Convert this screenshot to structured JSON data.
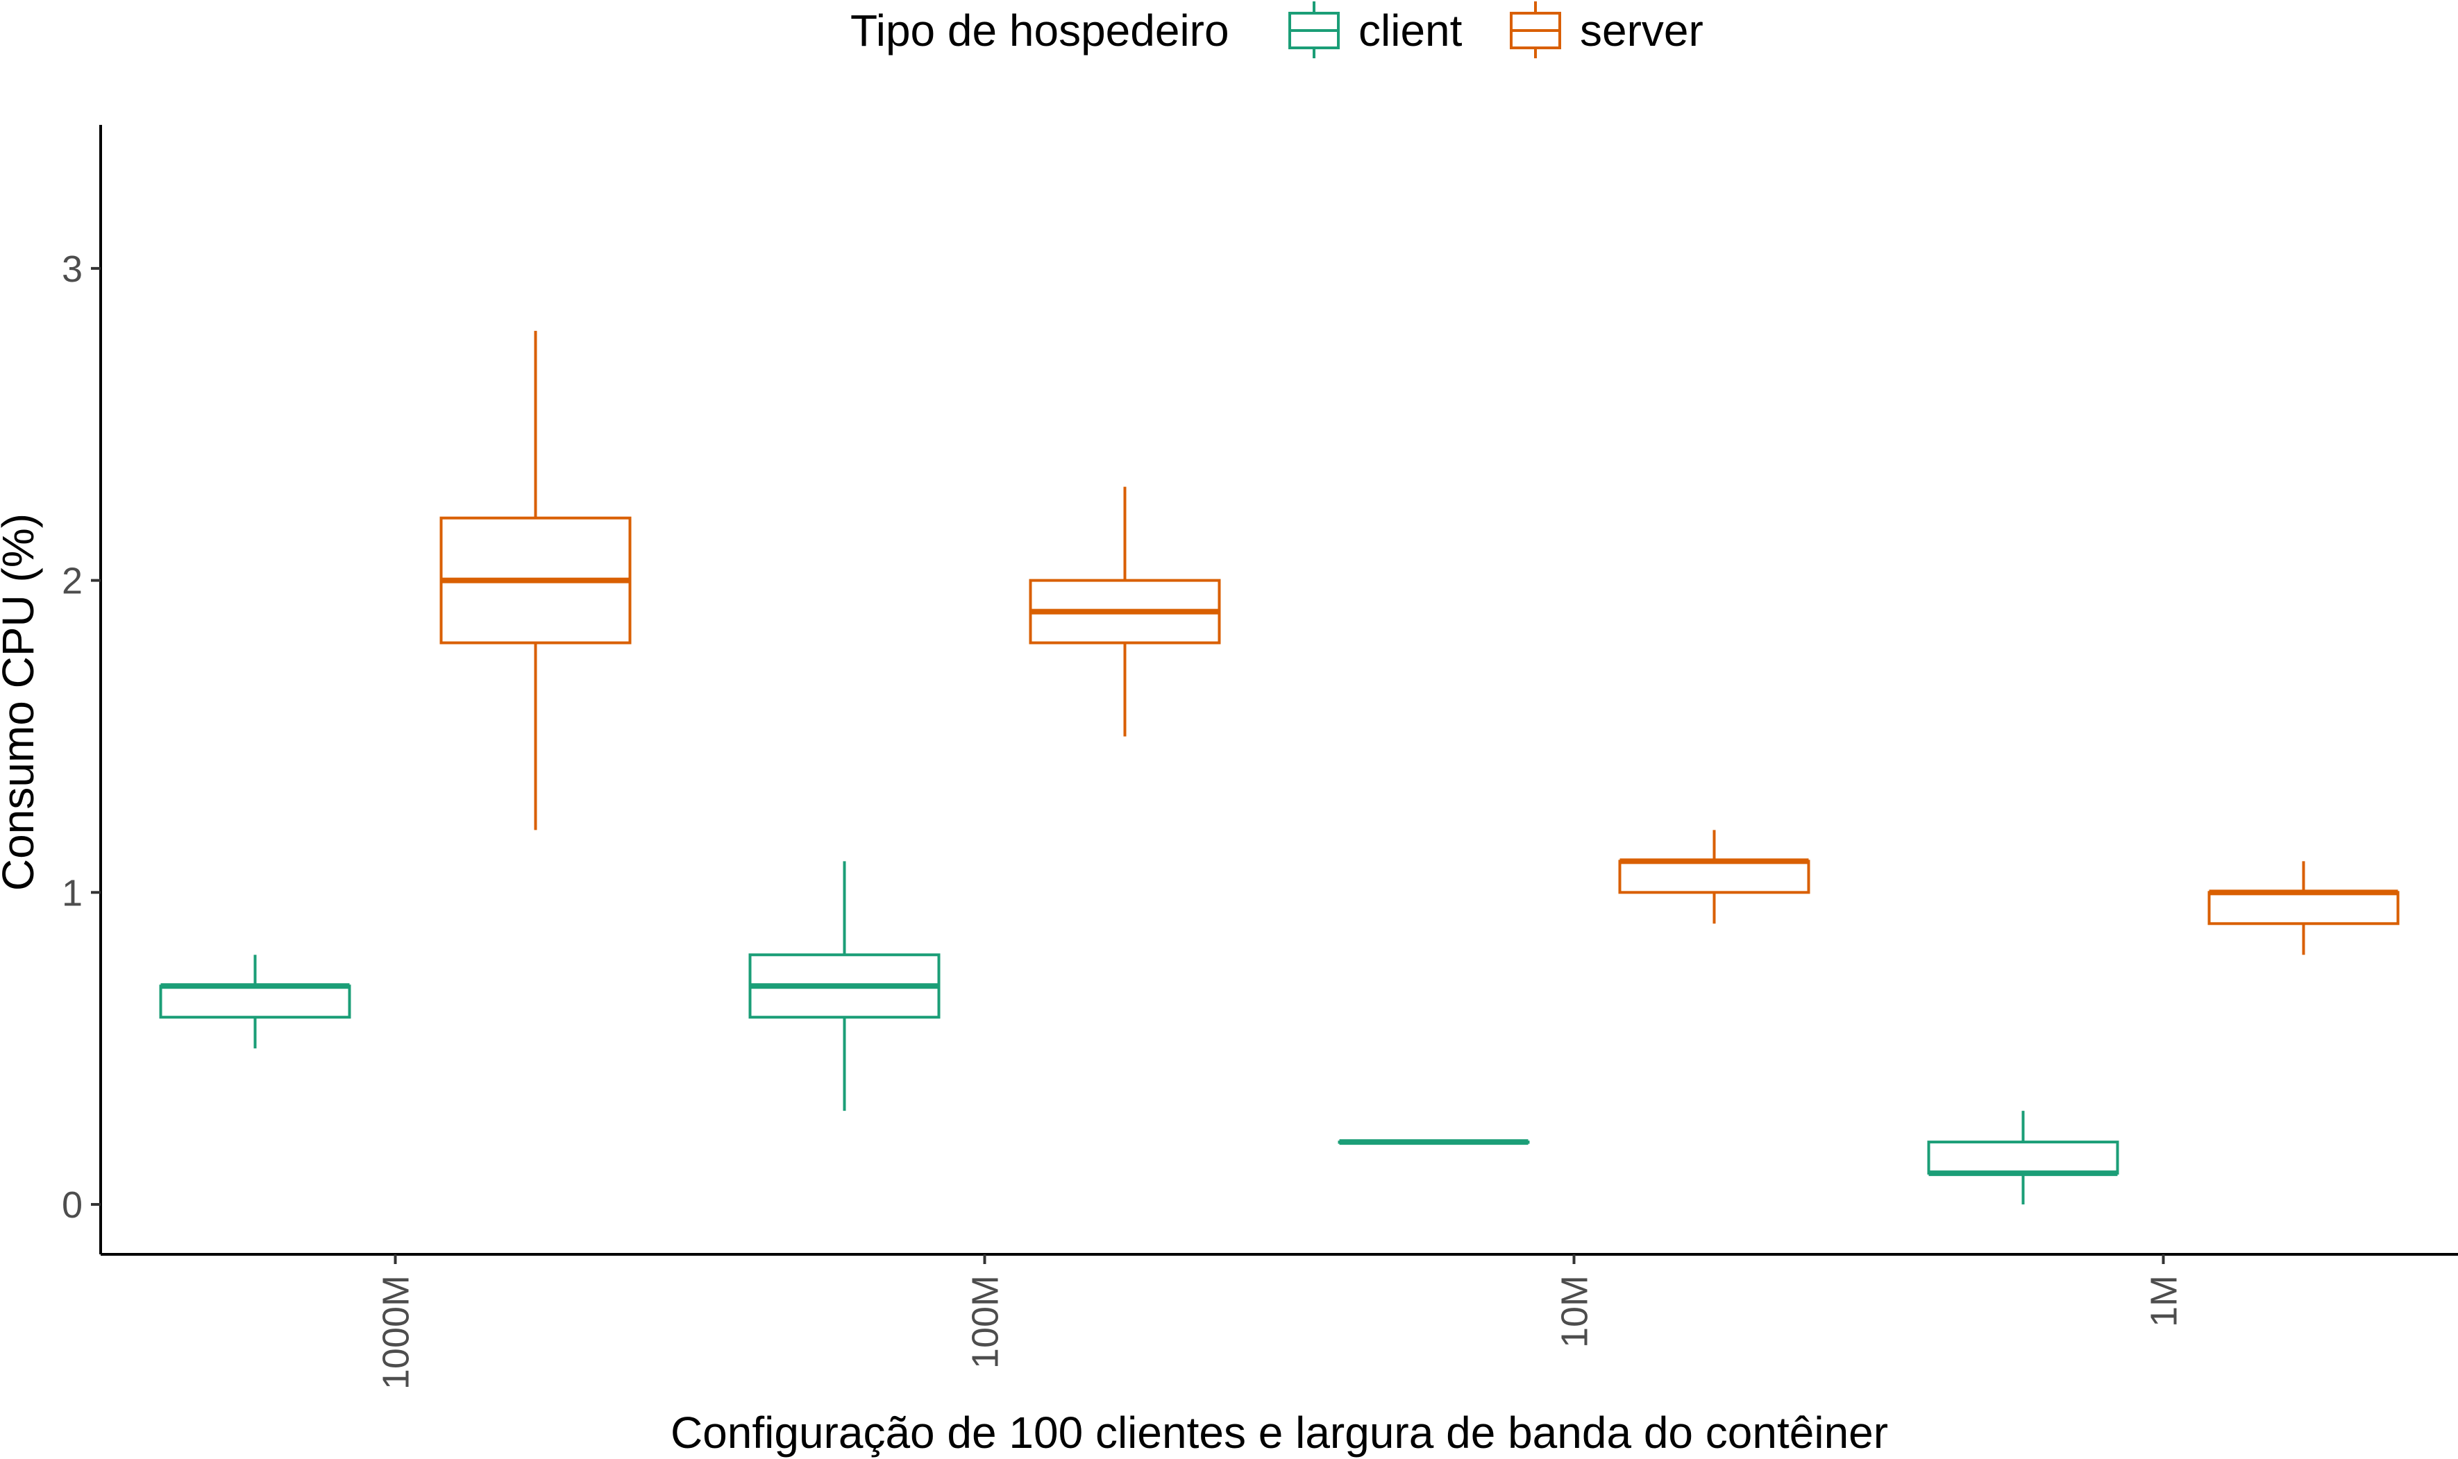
{
  "chart_data": {
    "type": "boxplot",
    "title": "",
    "xlabel": "Configuração de 100 clientes e largura de banda do contêiner",
    "ylabel": "Consumo CPU (%)",
    "ylim": [
      -0.16,
      3.46
    ],
    "yticks": [
      0,
      1,
      2,
      3
    ],
    "categories": [
      "1000M",
      "100M",
      "10M",
      "1M"
    ],
    "legend": {
      "title": "Tipo de hospedeiro",
      "position": "top"
    },
    "series": [
      {
        "name": "client",
        "color": "#1b9e77",
        "boxes": [
          {
            "whisker_low": 0.5,
            "q1": 0.6,
            "median": 0.7,
            "q3": 0.7,
            "whisker_high": 0.8
          },
          {
            "whisker_low": 0.3,
            "q1": 0.6,
            "median": 0.7,
            "q3": 0.8,
            "whisker_high": 1.1
          },
          {
            "whisker_low": 0.2,
            "q1": 0.2,
            "median": 0.2,
            "q3": 0.2,
            "whisker_high": 0.2
          },
          {
            "whisker_low": 0.0,
            "q1": 0.1,
            "median": 0.1,
            "q3": 0.2,
            "whisker_high": 0.3
          }
        ]
      },
      {
        "name": "server",
        "color": "#d95f02",
        "boxes": [
          {
            "whisker_low": 1.2,
            "q1": 1.8,
            "median": 2.0,
            "q3": 2.2,
            "whisker_high": 2.8
          },
          {
            "whisker_low": 1.5,
            "q1": 1.8,
            "median": 1.9,
            "q3": 2.0,
            "whisker_high": 2.3
          },
          {
            "whisker_low": 0.9,
            "q1": 1.0,
            "median": 1.1,
            "q3": 1.1,
            "whisker_high": 1.2
          },
          {
            "whisker_low": 0.8,
            "q1": 0.9,
            "median": 1.0,
            "q3": 1.0,
            "whisker_high": 1.1
          }
        ]
      }
    ]
  }
}
